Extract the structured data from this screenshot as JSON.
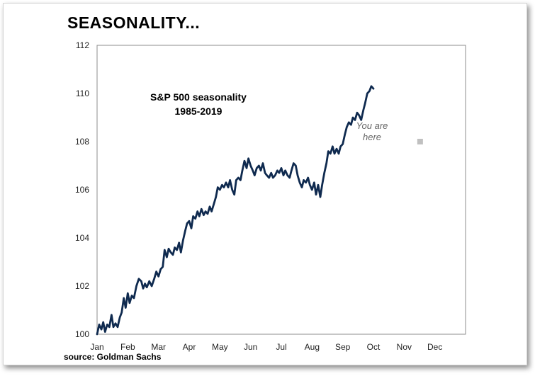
{
  "headline": "SEASONALITY...",
  "source": "source: Goldman Sachs",
  "chart_data": {
    "type": "line",
    "title_lines": [
      "S&P 500 seasonality",
      "1985-2019"
    ],
    "annotation": [
      "You are",
      "here"
    ],
    "annotation_marker": {
      "x": 10.52,
      "y": 108.0
    },
    "xlabel": "",
    "ylabel": "",
    "xlim": [
      0,
      12
    ],
    "ylim": [
      100,
      112
    ],
    "x_ticks": [
      {
        "label": "Jan",
        "x": 0
      },
      {
        "label": "Feb",
        "x": 1
      },
      {
        "label": "Mar",
        "x": 2
      },
      {
        "label": "Apr",
        "x": 3
      },
      {
        "label": "May",
        "x": 4
      },
      {
        "label": "Jun",
        "x": 5
      },
      {
        "label": "Jul",
        "x": 6
      },
      {
        "label": "Aug",
        "x": 7
      },
      {
        "label": "Sep",
        "x": 8
      },
      {
        "label": "Oct",
        "x": 9
      },
      {
        "label": "Nov",
        "x": 10
      },
      {
        "label": "Dec",
        "x": 11
      }
    ],
    "y_ticks": [
      100,
      102,
      104,
      106,
      108,
      110,
      112
    ],
    "grid": false,
    "colors": {
      "line": "#0f2a4f",
      "marker": "#c0c0c0",
      "axis": "#8c8c8c"
    },
    "series": [
      {
        "values": [
          [
            0.0,
            100.0
          ],
          [
            0.07,
            100.4
          ],
          [
            0.14,
            100.2
          ],
          [
            0.2,
            100.5
          ],
          [
            0.26,
            100.1
          ],
          [
            0.33,
            100.4
          ],
          [
            0.4,
            100.3
          ],
          [
            0.47,
            100.8
          ],
          [
            0.53,
            100.3
          ],
          [
            0.6,
            100.45
          ],
          [
            0.67,
            100.3
          ],
          [
            0.74,
            100.7
          ],
          [
            0.8,
            100.9
          ],
          [
            0.87,
            101.5
          ],
          [
            0.93,
            101.1
          ],
          [
            1.0,
            101.7
          ],
          [
            1.06,
            101.3
          ],
          [
            1.13,
            101.6
          ],
          [
            1.2,
            101.5
          ],
          [
            1.28,
            102.0
          ],
          [
            1.36,
            102.3
          ],
          [
            1.44,
            102.2
          ],
          [
            1.5,
            101.9
          ],
          [
            1.56,
            102.1
          ],
          [
            1.62,
            101.95
          ],
          [
            1.7,
            102.2
          ],
          [
            1.78,
            102.0
          ],
          [
            1.86,
            102.3
          ],
          [
            1.93,
            102.6
          ],
          [
            2.0,
            102.4
          ],
          [
            2.07,
            102.7
          ],
          [
            2.14,
            102.8
          ],
          [
            2.2,
            103.5
          ],
          [
            2.27,
            103.2
          ],
          [
            2.33,
            103.55
          ],
          [
            2.4,
            103.4
          ],
          [
            2.47,
            103.3
          ],
          [
            2.53,
            103.6
          ],
          [
            2.6,
            103.5
          ],
          [
            2.67,
            103.8
          ],
          [
            2.73,
            103.4
          ],
          [
            2.8,
            103.9
          ],
          [
            2.87,
            104.3
          ],
          [
            2.93,
            104.6
          ],
          [
            3.0,
            104.7
          ],
          [
            3.07,
            104.4
          ],
          [
            3.13,
            104.9
          ],
          [
            3.2,
            104.8
          ],
          [
            3.27,
            105.1
          ],
          [
            3.33,
            104.9
          ],
          [
            3.4,
            105.2
          ],
          [
            3.47,
            104.95
          ],
          [
            3.53,
            105.1
          ],
          [
            3.6,
            105.0
          ],
          [
            3.67,
            105.3
          ],
          [
            3.73,
            105.1
          ],
          [
            3.8,
            105.4
          ],
          [
            3.87,
            105.7
          ],
          [
            3.93,
            106.1
          ],
          [
            4.0,
            106.0
          ],
          [
            4.07,
            106.2
          ],
          [
            4.13,
            106.1
          ],
          [
            4.2,
            106.3
          ],
          [
            4.27,
            106.1
          ],
          [
            4.33,
            106.4
          ],
          [
            4.4,
            106.0
          ],
          [
            4.47,
            105.8
          ],
          [
            4.53,
            106.4
          ],
          [
            4.6,
            106.5
          ],
          [
            4.67,
            106.4
          ],
          [
            4.73,
            106.8
          ],
          [
            4.8,
            107.2
          ],
          [
            4.87,
            106.9
          ],
          [
            4.93,
            107.3
          ],
          [
            5.0,
            107.0
          ],
          [
            5.07,
            106.8
          ],
          [
            5.13,
            106.6
          ],
          [
            5.2,
            106.9
          ],
          [
            5.27,
            107.0
          ],
          [
            5.33,
            106.8
          ],
          [
            5.4,
            107.1
          ],
          [
            5.47,
            106.7
          ],
          [
            5.53,
            106.6
          ],
          [
            5.6,
            106.5
          ],
          [
            5.67,
            106.7
          ],
          [
            5.73,
            106.5
          ],
          [
            5.8,
            106.6
          ],
          [
            5.87,
            106.8
          ],
          [
            5.93,
            106.7
          ],
          [
            6.0,
            106.9
          ],
          [
            6.07,
            106.6
          ],
          [
            6.13,
            106.8
          ],
          [
            6.2,
            106.6
          ],
          [
            6.27,
            106.5
          ],
          [
            6.33,
            106.8
          ],
          [
            6.4,
            107.1
          ],
          [
            6.47,
            107.0
          ],
          [
            6.53,
            106.6
          ],
          [
            6.6,
            106.3
          ],
          [
            6.67,
            106.1
          ],
          [
            6.73,
            106.4
          ],
          [
            6.8,
            106.3
          ],
          [
            6.87,
            106.5
          ],
          [
            6.93,
            106.2
          ],
          [
            7.0,
            106.0
          ],
          [
            7.07,
            106.3
          ],
          [
            7.13,
            105.8
          ],
          [
            7.2,
            106.2
          ],
          [
            7.27,
            105.7
          ],
          [
            7.33,
            106.2
          ],
          [
            7.4,
            106.7
          ],
          [
            7.47,
            107.1
          ],
          [
            7.53,
            107.6
          ],
          [
            7.6,
            107.5
          ],
          [
            7.67,
            107.8
          ],
          [
            7.73,
            107.5
          ],
          [
            7.8,
            107.7
          ],
          [
            7.87,
            107.5
          ],
          [
            7.93,
            107.8
          ],
          [
            8.0,
            107.9
          ],
          [
            8.07,
            108.3
          ],
          [
            8.13,
            108.6
          ],
          [
            8.2,
            108.8
          ],
          [
            8.27,
            108.7
          ],
          [
            8.33,
            109.0
          ],
          [
            8.4,
            108.9
          ],
          [
            8.47,
            109.2
          ],
          [
            8.53,
            109.1
          ],
          [
            8.6,
            108.9
          ],
          [
            8.67,
            109.3
          ],
          [
            8.73,
            109.6
          ],
          [
            8.8,
            110.0
          ],
          [
            8.87,
            110.1
          ],
          [
            8.93,
            110.3
          ],
          [
            9.0,
            110.2
          ]
        ]
      }
    ]
  }
}
